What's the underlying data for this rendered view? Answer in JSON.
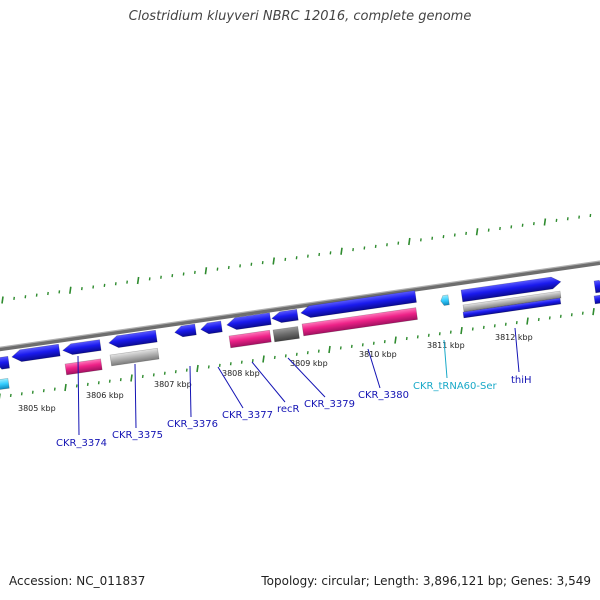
{
  "title": "Clostridium kluyveri NBRC 12016, complete genome",
  "footer": {
    "accession": "Accession: NC_011837",
    "stats": "Topology: circular; Length: 3,896,121 bp; Genes: 3,549"
  },
  "colors": {
    "cds": "#1a1aee",
    "cds_dark": "#000080",
    "rrna_like": "#ee2288",
    "grey": "#b4b4b4",
    "dark_grey": "#6e6e6e",
    "trna": "#33ccff",
    "tick": "#2e8b2e",
    "backbone": "#888888"
  },
  "kbp_labels": [
    "3805 kbp",
    "3806 kbp",
    "3807 kbp",
    "3808 kbp",
    "3809 kbp",
    "3810 kbp",
    "3811 kbp",
    "3812 kbp"
  ],
  "gene_labels": [
    {
      "text": "CKR_3374",
      "type": "cds"
    },
    {
      "text": "CKR_3375",
      "type": "cds"
    },
    {
      "text": "CKR_3376",
      "type": "cds"
    },
    {
      "text": "CKR_3377",
      "type": "cds"
    },
    {
      "text": "recR",
      "type": "cds"
    },
    {
      "text": "CKR_3379",
      "type": "cds"
    },
    {
      "text": "CKR_3380",
      "type": "cds"
    },
    {
      "text": "CKR_tRNA60-Ser",
      "type": "trna"
    },
    {
      "text": "thiH",
      "type": "cds"
    }
  ]
}
